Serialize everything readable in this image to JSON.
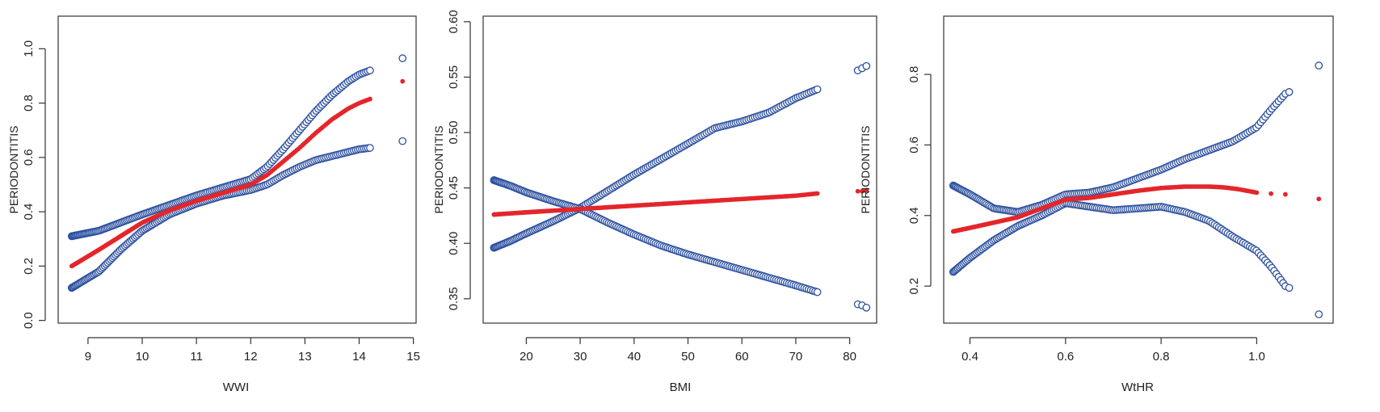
{
  "chart_data": [
    {
      "type": "scatter",
      "xlabel": "WWI",
      "ylabel": "PERIODONTITIS",
      "xlim": [
        8.45,
        15.05
      ],
      "ylim": [
        -0.01,
        1.12
      ],
      "xticks": [
        9,
        10,
        11,
        12,
        13,
        14,
        15
      ],
      "yticks": [
        0.0,
        0.2,
        0.4,
        0.6,
        0.8,
        1.0
      ],
      "ytick_labels": [
        "0.0",
        "0.2",
        "0.4",
        "0.6",
        "0.8",
        "1.0"
      ],
      "colors": {
        "fit": "#e3262b",
        "ci": "#2b4f9e"
      },
      "series": [
        {
          "role": "upper",
          "style": "open-circle",
          "x": [
            8.7,
            9.2,
            9.6,
            10.0,
            10.5,
            11.0,
            11.5,
            12.0,
            12.3,
            12.6,
            12.9,
            13.2,
            13.5,
            13.8,
            14.0,
            14.2
          ],
          "y": [
            0.31,
            0.33,
            0.36,
            0.39,
            0.425,
            0.46,
            0.49,
            0.52,
            0.565,
            0.63,
            0.7,
            0.77,
            0.83,
            0.88,
            0.905,
            0.92
          ],
          "extra": [
            [
              14.8,
              0.965
            ]
          ]
        },
        {
          "role": "fit",
          "style": "filled-dot",
          "x": [
            8.7,
            9.2,
            9.6,
            10.0,
            10.5,
            11.0,
            11.5,
            12.0,
            12.3,
            12.6,
            12.9,
            13.2,
            13.5,
            13.8,
            14.0,
            14.2
          ],
          "y": [
            0.2,
            0.26,
            0.31,
            0.36,
            0.405,
            0.44,
            0.47,
            0.5,
            0.535,
            0.585,
            0.635,
            0.69,
            0.74,
            0.78,
            0.8,
            0.815
          ],
          "extra": [
            [
              14.8,
              0.88
            ]
          ]
        },
        {
          "role": "lower",
          "style": "open-circle",
          "x": [
            8.7,
            9.2,
            9.6,
            10.0,
            10.5,
            11.0,
            11.5,
            12.0,
            12.3,
            12.6,
            12.9,
            13.2,
            13.5,
            13.8,
            14.0,
            14.2
          ],
          "y": [
            0.12,
            0.18,
            0.26,
            0.33,
            0.39,
            0.43,
            0.46,
            0.48,
            0.5,
            0.535,
            0.565,
            0.59,
            0.605,
            0.62,
            0.63,
            0.635
          ],
          "extra": [
            [
              14.8,
              0.66
            ]
          ]
        }
      ]
    },
    {
      "type": "scatter",
      "xlabel": "BMI",
      "ylabel": "PERIODONTITIS",
      "xlim": [
        12,
        85
      ],
      "ylim": [
        0.328,
        0.605
      ],
      "xticks": [
        20,
        30,
        40,
        50,
        60,
        70,
        80
      ],
      "yticks": [
        0.35,
        0.4,
        0.45,
        0.5,
        0.55,
        0.6
      ],
      "ytick_labels": [
        "0.35",
        "0.40",
        "0.45",
        "0.50",
        "0.55",
        "0.60"
      ],
      "colors": {
        "fit": "#e3262b",
        "ci": "#2b4f9e"
      },
      "series": [
        {
          "role": "upper",
          "style": "open-circle",
          "x": [
            14,
            17,
            20,
            25,
            30,
            35,
            40,
            45,
            50,
            55,
            60,
            65,
            70,
            74
          ],
          "y": [
            0.396,
            0.402,
            0.409,
            0.42,
            0.432,
            0.447,
            0.462,
            0.476,
            0.49,
            0.504,
            0.51,
            0.518,
            0.531,
            0.539
          ],
          "extra": [
            [
              81.5,
              0.556
            ],
            [
              82.3,
              0.558
            ],
            [
              83.1,
              0.56
            ]
          ]
        },
        {
          "role": "fit",
          "style": "filled-dot",
          "x": [
            14,
            20,
            30,
            40,
            50,
            60,
            70,
            74
          ],
          "y": [
            0.426,
            0.428,
            0.431,
            0.434,
            0.437,
            0.44,
            0.443,
            0.445
          ],
          "extra": [
            [
              81.5,
              0.447
            ],
            [
              82.3,
              0.447
            ],
            [
              83.1,
              0.448
            ]
          ]
        },
        {
          "role": "lower",
          "style": "open-circle",
          "x": [
            14,
            17,
            20,
            25,
            30,
            35,
            40,
            45,
            50,
            55,
            60,
            65,
            70,
            74
          ],
          "y": [
            0.457,
            0.452,
            0.446,
            0.438,
            0.431,
            0.419,
            0.408,
            0.398,
            0.39,
            0.383,
            0.376,
            0.369,
            0.362,
            0.356
          ],
          "extra": [
            [
              81.5,
              0.345
            ],
            [
              82.3,
              0.344
            ],
            [
              83.1,
              0.342
            ]
          ]
        }
      ]
    },
    {
      "type": "scatter",
      "xlabel": "WtHR",
      "ylabel": "PERIODONTITIS",
      "xlim": [
        0.345,
        1.16
      ],
      "ylim": [
        0.095,
        0.965
      ],
      "xticks": [
        0.4,
        0.6,
        0.8,
        1.0
      ],
      "yticks": [
        0.2,
        0.4,
        0.6,
        0.8
      ],
      "ytick_labels": [
        "0.2",
        "0.4",
        "0.6",
        "0.8"
      ],
      "colors": {
        "fit": "#e3262b",
        "ci": "#2b4f9e"
      },
      "series": [
        {
          "role": "upper",
          "style": "open-circle",
          "x": [
            0.365,
            0.4,
            0.45,
            0.5,
            0.55,
            0.6,
            0.65,
            0.7,
            0.75,
            0.8,
            0.85,
            0.9,
            0.95,
            1.0,
            1.03,
            1.06
          ],
          "y": [
            0.485,
            0.46,
            0.42,
            0.41,
            0.43,
            0.46,
            0.465,
            0.48,
            0.505,
            0.53,
            0.56,
            0.585,
            0.61,
            0.65,
            0.7,
            0.745
          ],
          "extra": [
            [
              1.068,
              0.75
            ],
            [
              1.13,
              0.825
            ]
          ]
        },
        {
          "role": "fit",
          "style": "filled-dot",
          "x": [
            0.365,
            0.4,
            0.45,
            0.5,
            0.55,
            0.6,
            0.65,
            0.7,
            0.75,
            0.8,
            0.85,
            0.9,
            0.93,
            0.96,
            0.98,
            1.0
          ],
          "y": [
            0.355,
            0.365,
            0.38,
            0.395,
            0.42,
            0.445,
            0.45,
            0.46,
            0.47,
            0.478,
            0.482,
            0.482,
            0.48,
            0.475,
            0.47,
            0.465
          ],
          "extra": [
            [
              1.03,
              0.462
            ],
            [
              1.06,
              0.46
            ],
            [
              1.13,
              0.447
            ]
          ]
        },
        {
          "role": "lower",
          "style": "open-circle",
          "x": [
            0.365,
            0.4,
            0.45,
            0.5,
            0.55,
            0.6,
            0.65,
            0.7,
            0.75,
            0.8,
            0.85,
            0.9,
            0.95,
            1.0,
            1.03,
            1.06
          ],
          "y": [
            0.24,
            0.28,
            0.33,
            0.37,
            0.4,
            0.435,
            0.425,
            0.415,
            0.42,
            0.425,
            0.41,
            0.385,
            0.34,
            0.3,
            0.255,
            0.2
          ],
          "extra": [
            [
              1.068,
              0.195
            ],
            [
              1.13,
              0.12
            ]
          ]
        }
      ]
    }
  ]
}
